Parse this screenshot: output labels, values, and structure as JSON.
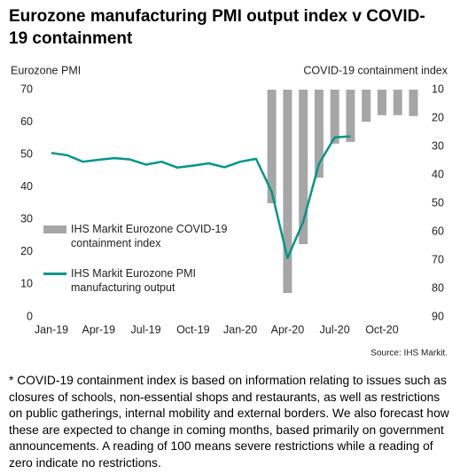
{
  "chart_data": {
    "type": "combo",
    "title": "Eurozone manufacturing PMI output index v COVID-19 containment",
    "y_label": "Eurozone PMI",
    "y2_label": "COVID-19 containment index",
    "categories": [
      "Jan-19",
      null,
      null,
      "Apr-19",
      null,
      null,
      "Jul-19",
      null,
      null,
      "Oct-19",
      null,
      null,
      "Jan-20",
      null,
      null,
      "Apr-20",
      null,
      null,
      "Jul-20",
      null,
      null,
      "Oct-20",
      null,
      null
    ],
    "series": [
      {
        "name": "IHS Markit Eurozone COVID-19 containment index",
        "type": "bar",
        "axis": "y2",
        "color": "#a6a6a6",
        "values": [
          null,
          null,
          null,
          null,
          null,
          null,
          null,
          null,
          null,
          null,
          null,
          null,
          null,
          null,
          50,
          81.6,
          64.4,
          41,
          29,
          28.4,
          21.3,
          19,
          19,
          19.3
        ]
      },
      {
        "name": "IHS Markit Eurozone PMI manufacturing output",
        "type": "line",
        "axis": "y",
        "color": "#009688",
        "values": [
          50.5,
          49.8,
          47.8,
          48.4,
          48.9,
          48.5,
          46.9,
          47.8,
          46.0,
          46.6,
          47.3,
          46.1,
          47.8,
          48.7,
          38.5,
          18.1,
          29.3,
          47.2,
          55.3,
          55.6,
          null,
          null,
          null,
          null
        ]
      }
    ],
    "ylim": [
      0,
      70
    ],
    "yticks": [
      0,
      10,
      20,
      30,
      40,
      50,
      60,
      70
    ],
    "y2lim": [
      90,
      10
    ],
    "y2ticks": [
      10,
      20,
      30,
      40,
      50,
      60,
      70,
      80,
      90
    ],
    "grid": false,
    "legend": "left",
    "source": "Source: IHS Markit.",
    "footnote": "* COVID-19 containment index is based on information relating to issues such as closures of schools, non-essential shops and restaurants, as well as restrictions on public gatherings, internal mobility and external borders. We also forecast how these are expected to change in coming months, based primarily on government announcements. A reading of 100 means severe restrictions while a reading of zero indicate no restrictions."
  }
}
